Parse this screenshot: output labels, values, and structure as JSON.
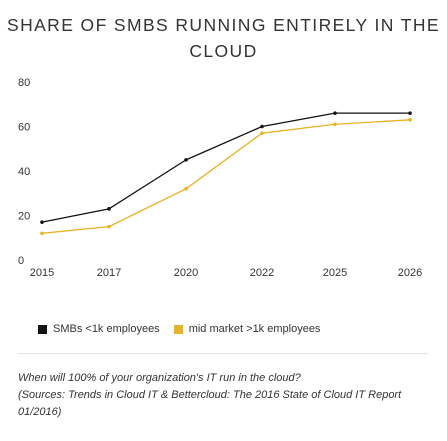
{
  "chart_data": {
    "type": "line",
    "title": "SHARE OF SMBS RUNNING ENTIRELY IN THE CLOUD",
    "x": [
      "2015",
      "2017",
      "2020",
      "2022",
      "2025",
      "2026"
    ],
    "ylim": [
      0,
      80
    ],
    "yticks": [
      "0",
      "20",
      "40",
      "60",
      "80"
    ],
    "grid": false,
    "legend_position": "bottom",
    "series": [
      {
        "name": "SMBs <1k employees",
        "color": "#111111",
        "points": [
          [
            2015,
            17
          ],
          [
            2017,
            23
          ],
          [
            2020,
            45
          ],
          [
            2022,
            60
          ],
          [
            2025,
            66
          ],
          [
            2026,
            66
          ]
        ]
      },
      {
        "name": "mid market >1k employees",
        "color": "#e9b323",
        "points": [
          [
            2015,
            12
          ],
          [
            2017,
            15
          ],
          [
            2020,
            32
          ],
          [
            2022,
            57
          ],
          [
            2025,
            61
          ],
          [
            2026,
            63
          ]
        ]
      }
    ]
  },
  "legend": {
    "items": [
      {
        "label": "SMBs <1k employees",
        "color": "#111111"
      },
      {
        "label": "mid market >1k employees",
        "color": "#e9b323"
      }
    ]
  },
  "note": {
    "question": "When will 100% of your organization's IT run in the cloud?",
    "source": "(Sources: Trends in Cloud IT & Bettercloud: The 2016 State of Cloud IT Report 01/2016)"
  }
}
